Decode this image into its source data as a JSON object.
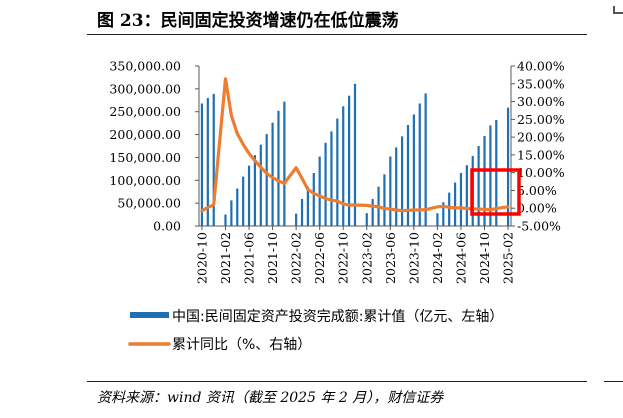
{
  "figure_title": "图 23：民间固定投资增速仍在低位震荡",
  "source_note": "资料来源：wind 资讯（截至 2025 年 2 月），财信证券",
  "colors": {
    "bar": "#1f6fb5",
    "line": "#ed7d31",
    "highlight": "#ff0000"
  },
  "chart_data": {
    "type": "bar",
    "title": "民间固定投资增速仍在低位震荡",
    "x_ticks": [
      "2020-10",
      "2021-02",
      "2021-06",
      "2021-10",
      "2022-02",
      "2022-06",
      "2022-10",
      "2023-02",
      "2023-06",
      "2023-10",
      "2024-02",
      "2024-06",
      "2024-10",
      "2025-02"
    ],
    "y_left_ticks": [
      "0.00",
      "50,000.00",
      "100,000.00",
      "150,000.00",
      "200,000.00",
      "250,000.00",
      "300,000.00",
      "350,000.00"
    ],
    "y_right_ticks": [
      "-5.00%",
      "0.00%",
      "5.00%",
      "10.00%",
      "15.00%",
      "20.00%",
      "25.00%",
      "30.00%",
      "35.00%",
      "40.00%"
    ],
    "ylim_left": [
      0,
      350000
    ],
    "ylim_right": [
      -5,
      40
    ],
    "legend_position": "bottom",
    "grid": false,
    "series": [
      {
        "name": "中国:民间固定资产投资完成额:累计值（亿元、左轴）",
        "type": "bar",
        "axis": "left",
        "x": [
          "2020-10",
          "2020-11",
          "2020-12",
          "2021-02",
          "2021-03",
          "2021-04",
          "2021-05",
          "2021-06",
          "2021-07",
          "2021-08",
          "2021-09",
          "2021-10",
          "2021-11",
          "2021-12",
          "2022-02",
          "2022-03",
          "2022-04",
          "2022-05",
          "2022-06",
          "2022-07",
          "2022-08",
          "2022-09",
          "2022-10",
          "2022-11",
          "2022-12",
          "2023-02",
          "2023-03",
          "2023-04",
          "2023-05",
          "2023-06",
          "2023-07",
          "2023-08",
          "2023-09",
          "2023-10",
          "2023-11",
          "2023-12",
          "2024-02",
          "2024-03",
          "2024-04",
          "2024-05",
          "2024-06",
          "2024-07",
          "2024-08",
          "2024-09",
          "2024-10",
          "2024-11",
          "2024-12",
          "2025-02"
        ],
        "values": [
          268000,
          280000,
          289000,
          25000,
          56000,
          82000,
          108000,
          132000,
          155000,
          178000,
          201000,
          226000,
          252000,
          272000,
          27000,
          59000,
          86000,
          116000,
          152000,
          182000,
          207000,
          235000,
          262000,
          285000,
          311000,
          28000,
          59000,
          86000,
          113000,
          152000,
          172000,
          196000,
          221000,
          244000,
          268000,
          290000,
          28000,
          52000,
          73000,
          95000,
          116000,
          133000,
          153000,
          175000,
          197000,
          220000,
          232000,
          259000
        ]
      },
      {
        "name": "累计同比（%、右轴）",
        "type": "line",
        "axis": "right",
        "x": [
          "2020-10",
          "2020-11",
          "2020-12",
          "2021-02",
          "2021-03",
          "2021-04",
          "2021-05",
          "2021-06",
          "2021-07",
          "2021-08",
          "2021-09",
          "2021-10",
          "2021-11",
          "2021-12",
          "2022-02",
          "2022-03",
          "2022-04",
          "2022-05",
          "2022-06",
          "2022-07",
          "2022-08",
          "2022-09",
          "2022-10",
          "2022-11",
          "2022-12",
          "2023-02",
          "2023-03",
          "2023-04",
          "2023-05",
          "2023-06",
          "2023-07",
          "2023-08",
          "2023-09",
          "2023-10",
          "2023-11",
          "2023-12",
          "2024-02",
          "2024-03",
          "2024-04",
          "2024-05",
          "2024-06",
          "2024-07",
          "2024-08",
          "2024-09",
          "2024-10",
          "2024-11",
          "2024-12",
          "2025-02"
        ],
        "values": [
          -0.7,
          0.2,
          1.0,
          36.4,
          26.0,
          21.0,
          18.0,
          15.4,
          13.4,
          11.5,
          9.8,
          8.6,
          7.7,
          7.0,
          11.4,
          8.4,
          5.3,
          4.1,
          3.5,
          2.7,
          2.3,
          2.0,
          1.2,
          0.9,
          0.9,
          0.8,
          0.6,
          0.4,
          -0.1,
          -0.2,
          -0.5,
          -0.7,
          -0.6,
          -0.5,
          -0.5,
          -0.4,
          0.4,
          0.5,
          0.3,
          0.1,
          0.1,
          -0.1,
          -0.2,
          -0.2,
          -0.3,
          -0.4,
          -0.1,
          0.4
        ]
      }
    ]
  }
}
